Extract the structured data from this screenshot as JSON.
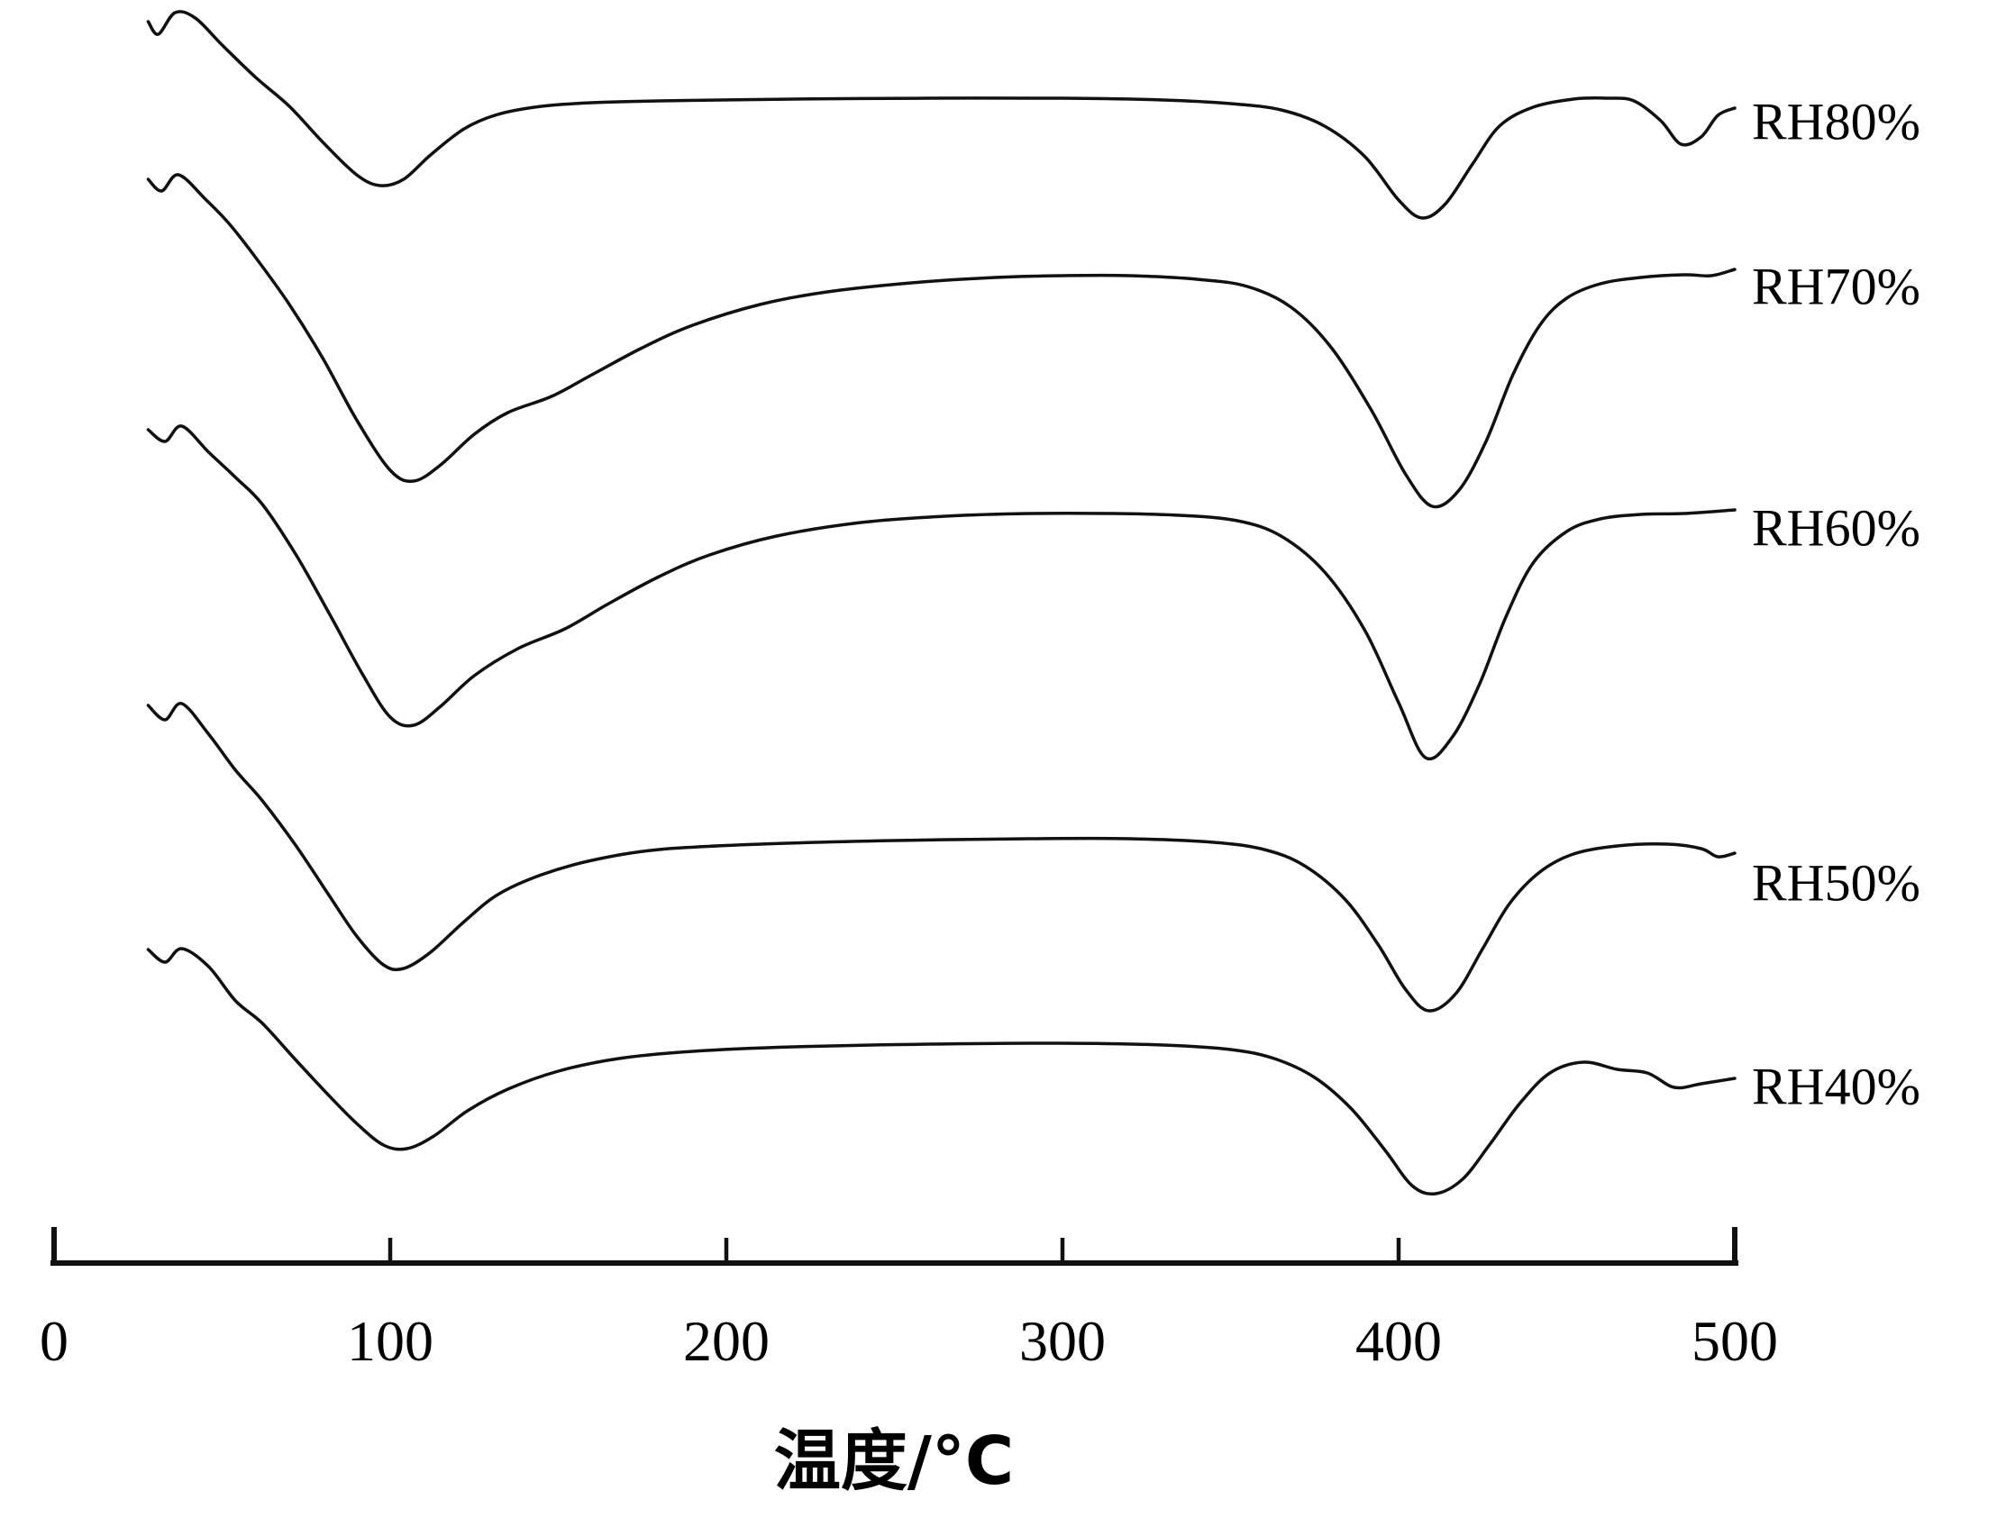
{
  "chart_data": {
    "type": "line",
    "title": "",
    "xlabel": "温度/°C",
    "ylabel": "",
    "xlim": [
      0,
      500
    ],
    "grid": false,
    "legend_position": "right-of-each-curve-end",
    "line_color": "#111111",
    "x_ticks": [
      {
        "value": 0,
        "label": "0"
      },
      {
        "value": 100,
        "label": "100"
      },
      {
        "value": 200,
        "label": "200"
      },
      {
        "value": 300,
        "label": "300"
      },
      {
        "value": 400,
        "label": "400"
      },
      {
        "value": 500,
        "label": "500"
      }
    ],
    "note": "Five stacked thermal-analysis (DSC/DTA-style) curves at different relative humidities; each curve shows an endothermic dip near 100 °C and a second dip near 405 °C; points are [temperature_C, relative_signal_up_positive]",
    "series": [
      {
        "name": "RH80%",
        "baseline_y": 112,
        "dip1_temp_C": 100,
        "dip2_temp_C": 405,
        "points": [
          [
            28,
            88
          ],
          [
            31,
            74
          ],
          [
            36,
            98
          ],
          [
            42,
            92
          ],
          [
            50,
            62
          ],
          [
            60,
            26
          ],
          [
            70,
            -6
          ],
          [
            80,
            -46
          ],
          [
            90,
            -82
          ],
          [
            97,
            -94
          ],
          [
            104,
            -87
          ],
          [
            112,
            -60
          ],
          [
            122,
            -31
          ],
          [
            132,
            -15
          ],
          [
            145,
            -6
          ],
          [
            160,
            -2
          ],
          [
            180,
            0
          ],
          [
            220,
            2
          ],
          [
            260,
            3
          ],
          [
            300,
            3
          ],
          [
            330,
            1
          ],
          [
            350,
            -3
          ],
          [
            365,
            -10
          ],
          [
            378,
            -28
          ],
          [
            390,
            -62
          ],
          [
            400,
            -110
          ],
          [
            407,
            -130
          ],
          [
            414,
            -114
          ],
          [
            422,
            -70
          ],
          [
            430,
            -28
          ],
          [
            440,
            -7
          ],
          [
            452,
            2
          ],
          [
            462,
            3
          ],
          [
            470,
            0
          ],
          [
            478,
            -22
          ],
          [
            484,
            -48
          ],
          [
            490,
            -40
          ],
          [
            495,
            -16
          ],
          [
            500,
            -8
          ]
        ]
      },
      {
        "name": "RH70%",
        "baseline_y": 306,
        "dip1_temp_C": 105,
        "dip2_temp_C": 408,
        "points": [
          [
            28,
            107
          ],
          [
            32,
            94
          ],
          [
            37,
            112
          ],
          [
            45,
            85
          ],
          [
            52,
            58
          ],
          [
            60,
            20
          ],
          [
            70,
            -32
          ],
          [
            80,
            -92
          ],
          [
            90,
            -160
          ],
          [
            100,
            -216
          ],
          [
            107,
            -228
          ],
          [
            115,
            -210
          ],
          [
            125,
            -176
          ],
          [
            135,
            -152
          ],
          [
            148,
            -134
          ],
          [
            160,
            -110
          ],
          [
            175,
            -80
          ],
          [
            190,
            -55
          ],
          [
            210,
            -32
          ],
          [
            230,
            -18
          ],
          [
            255,
            -8
          ],
          [
            280,
            -2
          ],
          [
            300,
            0
          ],
          [
            320,
            0
          ],
          [
            340,
            -4
          ],
          [
            355,
            -12
          ],
          [
            368,
            -35
          ],
          [
            380,
            -80
          ],
          [
            392,
            -150
          ],
          [
            402,
            -220
          ],
          [
            410,
            -256
          ],
          [
            418,
            -238
          ],
          [
            426,
            -184
          ],
          [
            434,
            -110
          ],
          [
            442,
            -55
          ],
          [
            450,
            -25
          ],
          [
            460,
            -9
          ],
          [
            472,
            -2
          ],
          [
            485,
            1
          ],
          [
            493,
            0
          ],
          [
            500,
            7
          ]
        ]
      },
      {
        "name": "RH60%",
        "baseline_y": 570,
        "dip1_temp_C": 105,
        "dip2_temp_C": 408,
        "points": [
          [
            28,
            93
          ],
          [
            33,
            80
          ],
          [
            38,
            97
          ],
          [
            46,
            68
          ],
          [
            54,
            40
          ],
          [
            62,
            10
          ],
          [
            72,
            -46
          ],
          [
            82,
            -112
          ],
          [
            92,
            -180
          ],
          [
            100,
            -226
          ],
          [
            107,
            -235
          ],
          [
            115,
            -214
          ],
          [
            125,
            -180
          ],
          [
            138,
            -150
          ],
          [
            152,
            -128
          ],
          [
            165,
            -100
          ],
          [
            180,
            -70
          ],
          [
            195,
            -46
          ],
          [
            215,
            -25
          ],
          [
            240,
            -10
          ],
          [
            265,
            -3
          ],
          [
            290,
            0
          ],
          [
            315,
            0
          ],
          [
            335,
            -2
          ],
          [
            352,
            -8
          ],
          [
            365,
            -25
          ],
          [
            378,
            -65
          ],
          [
            390,
            -130
          ],
          [
            400,
            -210
          ],
          [
            408,
            -271
          ],
          [
            416,
            -248
          ],
          [
            424,
            -190
          ],
          [
            432,
            -114
          ],
          [
            440,
            -55
          ],
          [
            450,
            -20
          ],
          [
            460,
            -6
          ],
          [
            472,
            -1
          ],
          [
            485,
            0
          ],
          [
            500,
            4
          ]
        ]
      },
      {
        "name": "RH50%",
        "baseline_y": 933,
        "dip1_temp_C": 103,
        "dip2_temp_C": 407,
        "points": [
          [
            28,
            150
          ],
          [
            33,
            134
          ],
          [
            38,
            152
          ],
          [
            46,
            118
          ],
          [
            54,
            78
          ],
          [
            62,
            44
          ],
          [
            72,
            -6
          ],
          [
            82,
            -62
          ],
          [
            90,
            -106
          ],
          [
            98,
            -138
          ],
          [
            104,
            -142
          ],
          [
            112,
            -124
          ],
          [
            122,
            -90
          ],
          [
            132,
            -60
          ],
          [
            145,
            -38
          ],
          [
            160,
            -22
          ],
          [
            180,
            -10
          ],
          [
            210,
            -4
          ],
          [
            250,
            0
          ],
          [
            290,
            2
          ],
          [
            320,
            2
          ],
          [
            345,
            -2
          ],
          [
            360,
            -10
          ],
          [
            372,
            -28
          ],
          [
            384,
            -65
          ],
          [
            394,
            -116
          ],
          [
            402,
            -165
          ],
          [
            409,
            -189
          ],
          [
            417,
            -170
          ],
          [
            425,
            -120
          ],
          [
            433,
            -70
          ],
          [
            442,
            -35
          ],
          [
            452,
            -15
          ],
          [
            465,
            -6
          ],
          [
            480,
            -4
          ],
          [
            490,
            -9
          ],
          [
            495,
            -18
          ],
          [
            500,
            -14
          ]
        ]
      },
      {
        "name": "RH40%",
        "baseline_y": 1161,
        "dip1_temp_C": 103,
        "dip2_temp_C": 408,
        "points": [
          [
            28,
            107
          ],
          [
            33,
            93
          ],
          [
            38,
            108
          ],
          [
            46,
            88
          ],
          [
            54,
            50
          ],
          [
            62,
            25
          ],
          [
            72,
            -16
          ],
          [
            82,
            -56
          ],
          [
            90,
            -86
          ],
          [
            98,
            -110
          ],
          [
            105,
            -114
          ],
          [
            113,
            -100
          ],
          [
            123,
            -72
          ],
          [
            135,
            -48
          ],
          [
            150,
            -28
          ],
          [
            168,
            -14
          ],
          [
            190,
            -6
          ],
          [
            220,
            -1
          ],
          [
            260,
            2
          ],
          [
            300,
            3
          ],
          [
            330,
            1
          ],
          [
            350,
            -4
          ],
          [
            363,
            -14
          ],
          [
            375,
            -35
          ],
          [
            386,
            -70
          ],
          [
            396,
            -116
          ],
          [
            404,
            -155
          ],
          [
            411,
            -164
          ],
          [
            419,
            -148
          ],
          [
            427,
            -110
          ],
          [
            436,
            -64
          ],
          [
            445,
            -30
          ],
          [
            455,
            -18
          ],
          [
            465,
            -26
          ],
          [
            474,
            -30
          ],
          [
            482,
            -46
          ],
          [
            490,
            -42
          ],
          [
            500,
            -36
          ]
        ]
      }
    ]
  }
}
